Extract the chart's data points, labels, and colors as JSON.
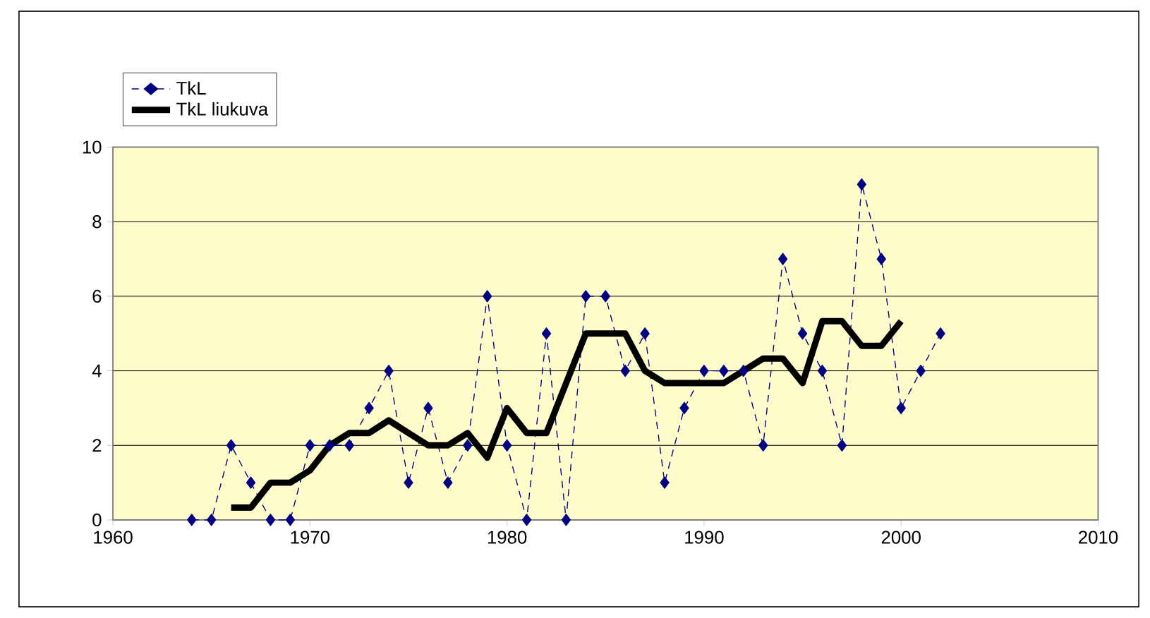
{
  "chart_data": {
    "type": "line",
    "x": [
      1964,
      1965,
      1966,
      1967,
      1968,
      1969,
      1970,
      1971,
      1972,
      1973,
      1974,
      1975,
      1976,
      1977,
      1978,
      1979,
      1980,
      1981,
      1982,
      1983,
      1984,
      1985,
      1986,
      1987,
      1988,
      1989,
      1990,
      1991,
      1992,
      1993,
      1994,
      1995,
      1996,
      1997,
      1998,
      1999,
      2000,
      2001,
      2002
    ],
    "series": [
      {
        "name": "TkL",
        "color": "#000080",
        "marker": "diamond",
        "line_style": "dashed",
        "values": [
          0,
          0,
          2,
          1,
          0,
          0,
          2,
          2,
          2,
          3,
          4,
          1,
          3,
          1,
          2,
          6,
          2,
          0,
          5,
          0,
          6,
          6,
          4,
          5,
          1,
          3,
          4,
          4,
          4,
          2,
          7,
          5,
          4,
          2,
          9,
          7,
          3,
          4,
          5
        ]
      },
      {
        "name": "TkL liukuva",
        "color": "#000000",
        "marker": "none",
        "line_style": "solid",
        "values": [
          null,
          null,
          0.33,
          0.33,
          1,
          1,
          1.33,
          2,
          2.33,
          2.33,
          2.67,
          2.33,
          2,
          2,
          2.33,
          1.67,
          3,
          2.33,
          2.33,
          3.67,
          5,
          5,
          5,
          4,
          3.67,
          3.67,
          3.67,
          3.67,
          4,
          4.33,
          4.33,
          3.67,
          5.33,
          5.33,
          4.67,
          4.67,
          5.33,
          null,
          null
        ]
      }
    ],
    "xlim": [
      1960,
      2010
    ],
    "ylim": [
      0,
      10
    ],
    "xticks": [
      1960,
      1970,
      1980,
      1990,
      2000,
      2010
    ],
    "yticks": [
      0,
      2,
      4,
      6,
      8,
      10
    ],
    "grid": "y",
    "legend": "top left"
  }
}
